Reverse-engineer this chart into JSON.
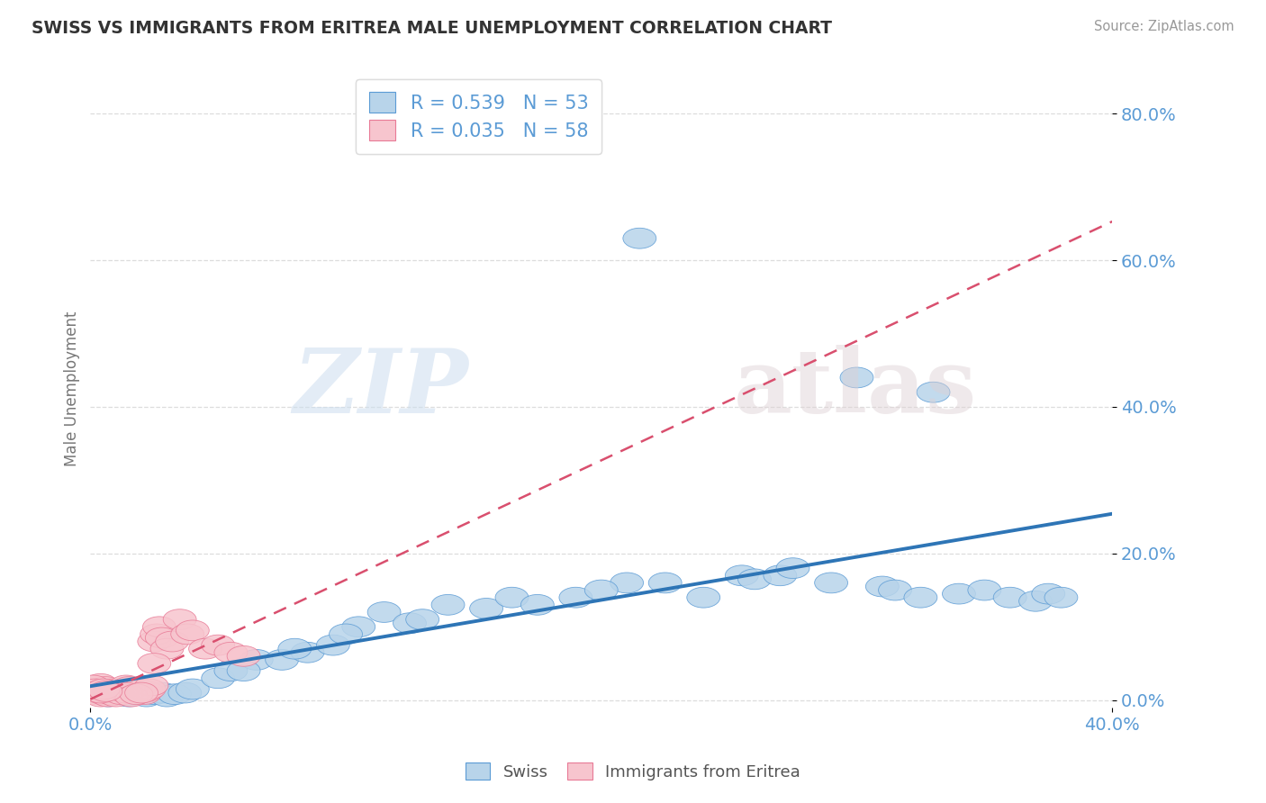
{
  "title": "SWISS VS IMMIGRANTS FROM ERITREA MALE UNEMPLOYMENT CORRELATION CHART",
  "source": "Source: ZipAtlas.com",
  "ylabel": "Male Unemployment",
  "ytick_vals": [
    0.0,
    0.2,
    0.4,
    0.6,
    0.8
  ],
  "ytick_labels": [
    "0.0%",
    "20.0%",
    "40.0%",
    "60.0%",
    "80.0%"
  ],
  "xtick_vals": [
    0.0,
    0.4
  ],
  "xtick_labels": [
    "0.0%",
    "40.0%"
  ],
  "xlim": [
    0.0,
    0.4
  ],
  "ylim": [
    -0.01,
    0.86
  ],
  "swiss_R": 0.539,
  "swiss_N": 53,
  "eritrea_R": 0.035,
  "eritrea_N": 58,
  "swiss_face_color": "#b8d4ea",
  "swiss_edge_color": "#5b9bd5",
  "eritrea_face_color": "#f7c5ce",
  "eritrea_edge_color": "#e87a96",
  "swiss_line_color": "#2e75b6",
  "eritrea_line_color": "#d94f6e",
  "tick_color": "#5b9bd5",
  "ylabel_color": "#777777",
  "title_color": "#333333",
  "source_color": "#999999",
  "grid_color": "#dddddd",
  "bg_color": "#ffffff",
  "swiss_x": [
    0.005,
    0.007,
    0.01,
    0.012,
    0.015,
    0.017,
    0.02,
    0.022,
    0.025,
    0.028,
    0.03,
    0.033,
    0.037,
    0.04,
    0.05,
    0.055,
    0.065,
    0.075,
    0.085,
    0.095,
    0.105,
    0.115,
    0.125,
    0.14,
    0.155,
    0.165,
    0.175,
    0.19,
    0.21,
    0.215,
    0.225,
    0.24,
    0.255,
    0.26,
    0.27,
    0.275,
    0.29,
    0.3,
    0.31,
    0.315,
    0.325,
    0.33,
    0.34,
    0.35,
    0.36,
    0.37,
    0.375,
    0.38,
    0.06,
    0.08,
    0.1,
    0.13,
    0.2
  ],
  "swiss_y": [
    0.01,
    0.005,
    0.008,
    0.01,
    0.005,
    0.008,
    0.01,
    0.005,
    0.008,
    0.01,
    0.005,
    0.008,
    0.01,
    0.015,
    0.03,
    0.04,
    0.055,
    0.055,
    0.065,
    0.075,
    0.1,
    0.12,
    0.105,
    0.13,
    0.125,
    0.14,
    0.13,
    0.14,
    0.16,
    0.63,
    0.16,
    0.14,
    0.17,
    0.165,
    0.17,
    0.18,
    0.16,
    0.44,
    0.155,
    0.15,
    0.14,
    0.42,
    0.145,
    0.15,
    0.14,
    0.135,
    0.145,
    0.14,
    0.04,
    0.07,
    0.09,
    0.11,
    0.15
  ],
  "eritrea_x": [
    0.001,
    0.002,
    0.003,
    0.004,
    0.005,
    0.006,
    0.007,
    0.008,
    0.009,
    0.01,
    0.011,
    0.012,
    0.013,
    0.014,
    0.015,
    0.016,
    0.017,
    0.018,
    0.019,
    0.02,
    0.021,
    0.022,
    0.023,
    0.024,
    0.025,
    0.026,
    0.027,
    0.028,
    0.03,
    0.032,
    0.035,
    0.038,
    0.04,
    0.045,
    0.05,
    0.055,
    0.06,
    0.002,
    0.003,
    0.004,
    0.005,
    0.006,
    0.007,
    0.008,
    0.009,
    0.01,
    0.012,
    0.014,
    0.016,
    0.018,
    0.02,
    0.025,
    0.001,
    0.002,
    0.003,
    0.004,
    0.005,
    0.006
  ],
  "eritrea_y": [
    0.015,
    0.012,
    0.018,
    0.022,
    0.015,
    0.018,
    0.01,
    0.012,
    0.015,
    0.01,
    0.008,
    0.012,
    0.015,
    0.02,
    0.018,
    0.015,
    0.01,
    0.012,
    0.015,
    0.01,
    0.008,
    0.012,
    0.015,
    0.02,
    0.08,
    0.09,
    0.1,
    0.085,
    0.07,
    0.08,
    0.11,
    0.09,
    0.095,
    0.07,
    0.075,
    0.065,
    0.06,
    0.008,
    0.01,
    0.005,
    0.008,
    0.01,
    0.005,
    0.008,
    0.01,
    0.005,
    0.008,
    0.01,
    0.005,
    0.008,
    0.01,
    0.05,
    0.02,
    0.015,
    0.012,
    0.01,
    0.015,
    0.012
  ]
}
